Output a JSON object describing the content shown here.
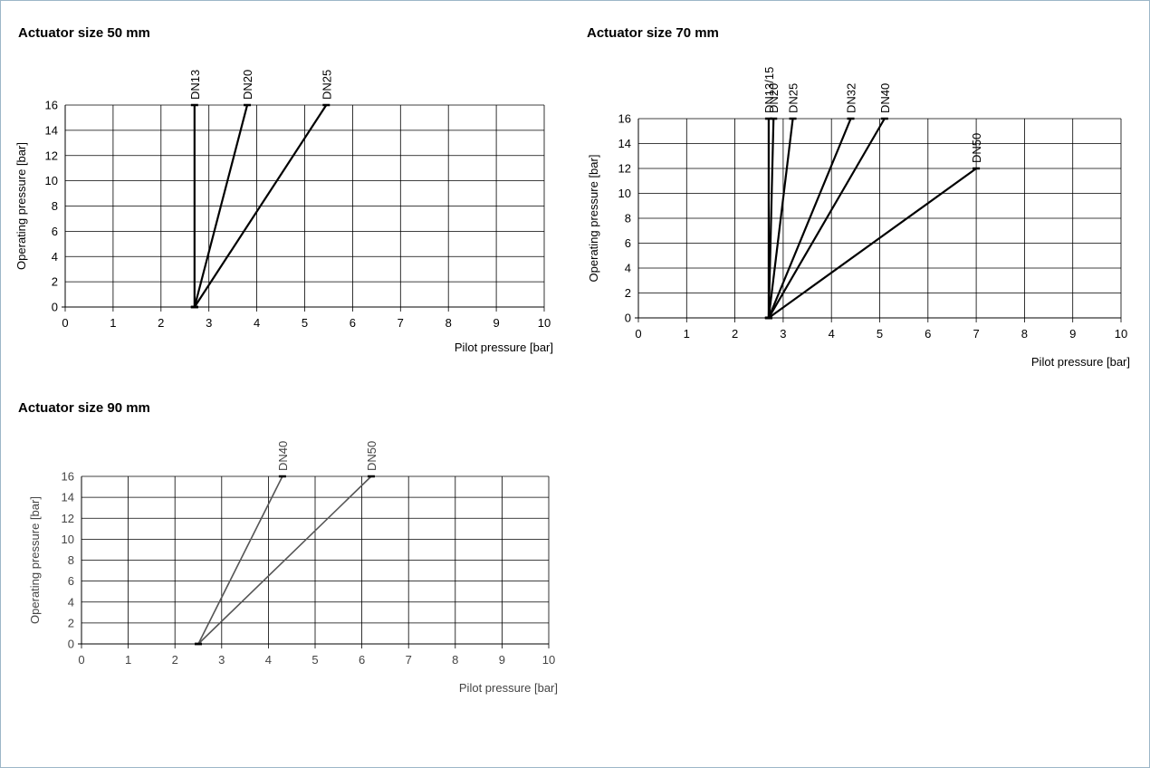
{
  "chart_data": [
    {
      "type": "line",
      "title": "Actuator size 50 mm",
      "xlabel": "Pilot pressure [bar]",
      "ylabel": "Operating pressure [bar]",
      "xlim": [
        0,
        10
      ],
      "ylim": [
        0,
        16
      ],
      "xticks": [
        "0",
        "1",
        "2",
        "3",
        "4",
        "5",
        "6",
        "7",
        "8",
        "9",
        "10"
      ],
      "yticks": [
        "0",
        "2",
        "4",
        "6",
        "8",
        "10",
        "12",
        "14",
        "16"
      ],
      "grid": true,
      "series": [
        {
          "name": "DN13",
          "x": [
            2.7,
            2.7
          ],
          "y": [
            0,
            16
          ]
        },
        {
          "name": "DN20",
          "x": [
            2.7,
            3.8
          ],
          "y": [
            0,
            16
          ]
        },
        {
          "name": "DN25",
          "x": [
            2.7,
            5.45
          ],
          "y": [
            0,
            16
          ]
        }
      ]
    },
    {
      "type": "line",
      "title": "Actuator size 70 mm",
      "xlabel": "Pilot pressure [bar]",
      "ylabel": "Operating pressure [bar]",
      "xlim": [
        0,
        10
      ],
      "ylim": [
        0,
        16
      ],
      "xticks": [
        "0",
        "1",
        "2",
        "3",
        "4",
        "5",
        "6",
        "7",
        "8",
        "9",
        "10"
      ],
      "yticks": [
        "0",
        "2",
        "4",
        "6",
        "8",
        "10",
        "12",
        "14",
        "16"
      ],
      "grid": true,
      "series": [
        {
          "name": "DN13/15",
          "x": [
            2.7,
            2.7
          ],
          "y": [
            0,
            16
          ]
        },
        {
          "name": "DN20",
          "x": [
            2.7,
            2.8
          ],
          "y": [
            0,
            16
          ]
        },
        {
          "name": "DN25",
          "x": [
            2.7,
            3.2
          ],
          "y": [
            0,
            16
          ]
        },
        {
          "name": "DN32",
          "x": [
            2.7,
            4.4
          ],
          "y": [
            0,
            16
          ]
        },
        {
          "name": "DN40",
          "x": [
            2.7,
            5.1
          ],
          "y": [
            0,
            16
          ]
        },
        {
          "name": "DN50",
          "x": [
            2.7,
            7.0
          ],
          "y": [
            0,
            12
          ]
        }
      ]
    },
    {
      "type": "line",
      "title": "Actuator size 90 mm",
      "xlabel": "Pilot pressure [bar]",
      "ylabel": "Operating pressure [bar]",
      "xlim": [
        0,
        10
      ],
      "ylim": [
        0,
        16
      ],
      "xticks": [
        "0",
        "1",
        "2",
        "3",
        "4",
        "5",
        "6",
        "7",
        "8",
        "9",
        "10"
      ],
      "yticks": [
        "0",
        "2",
        "4",
        "6",
        "8",
        "10",
        "12",
        "14",
        "16"
      ],
      "grid": true,
      "series": [
        {
          "name": "DN40",
          "x": [
            2.5,
            4.3
          ],
          "y": [
            0,
            16
          ]
        },
        {
          "name": "DN50",
          "x": [
            2.5,
            6.2
          ],
          "y": [
            0,
            16
          ]
        }
      ]
    }
  ],
  "colors": {
    "border": "#9cb6c8",
    "series_dark": "#000000",
    "series_gray": "#555555",
    "grid": "#000000"
  }
}
